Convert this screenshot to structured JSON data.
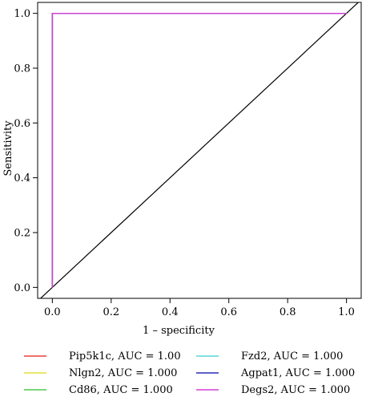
{
  "chart_data": {
    "type": "line",
    "title": "",
    "xlabel": "1 – specificity",
    "ylabel": "Sensitivity",
    "xlim": [
      -0.05,
      1.05
    ],
    "ylim": [
      -0.04,
      1.04
    ],
    "x_ticks": [
      0.0,
      0.2,
      0.4,
      0.6,
      0.8,
      1.0
    ],
    "x_tick_labels": [
      "0.0",
      "0.2",
      "0.4",
      "0.6",
      "0.8",
      "1.0"
    ],
    "y_ticks": [
      0.0,
      0.2,
      0.4,
      0.6,
      0.8,
      1.0
    ],
    "y_tick_labels": [
      "0.0",
      "0.2",
      "0.4",
      "0.6",
      "0.8",
      "1.0"
    ],
    "grid": false,
    "legend_position": "bottom",
    "reference_line": {
      "x": [
        -0.05,
        1.05
      ],
      "y": [
        -0.05,
        1.05
      ],
      "color": "#000000"
    },
    "series": [
      {
        "name": "Pip5k1c",
        "auc_label": "Pip5k1c, AUC = 1.00",
        "color": "#e8413c",
        "x": [
          0,
          0,
          1
        ],
        "y": [
          0,
          1,
          1
        ]
      },
      {
        "name": "Nlgn2",
        "auc_label": "Nlgn2, AUC = 1.000",
        "color": "#e6e03a",
        "x": [
          0,
          0,
          1
        ],
        "y": [
          0,
          1,
          1
        ]
      },
      {
        "name": "Cd86",
        "auc_label": "Cd86, AUC = 1.000",
        "color": "#4fc94f",
        "x": [
          0,
          0,
          1
        ],
        "y": [
          0,
          1,
          1
        ]
      },
      {
        "name": "Fzd2",
        "auc_label": "Fzd2, AUC = 1.000",
        "color": "#5cd6d6",
        "x": [
          0,
          0,
          1
        ],
        "y": [
          0,
          1,
          1
        ]
      },
      {
        "name": "Agpat1",
        "auc_label": "Agpat1, AUC = 1.000",
        "color": "#2c2cb8",
        "x": [
          0,
          0,
          1
        ],
        "y": [
          0,
          1,
          1
        ]
      },
      {
        "name": "Degs2",
        "auc_label": "Degs2, AUC = 1.000",
        "color": "#d63fd6",
        "x": [
          0,
          0,
          1
        ],
        "y": [
          0,
          1,
          1
        ]
      }
    ]
  }
}
